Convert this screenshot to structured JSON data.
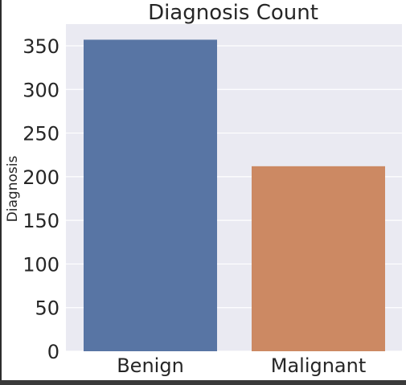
{
  "chart_data": {
    "type": "bar",
    "title": "Diagnosis Count",
    "xlabel": "",
    "ylabel": "Diagnosis",
    "categories": [
      "Benign",
      "Malignant"
    ],
    "values": [
      357,
      212
    ],
    "colors": [
      "#5875a4",
      "#cc8963"
    ],
    "ylim": [
      0,
      360
    ],
    "yticks": [
      0,
      50,
      100,
      150,
      200,
      250,
      300,
      350
    ],
    "background": "#eaeaf2",
    "grid": true
  }
}
